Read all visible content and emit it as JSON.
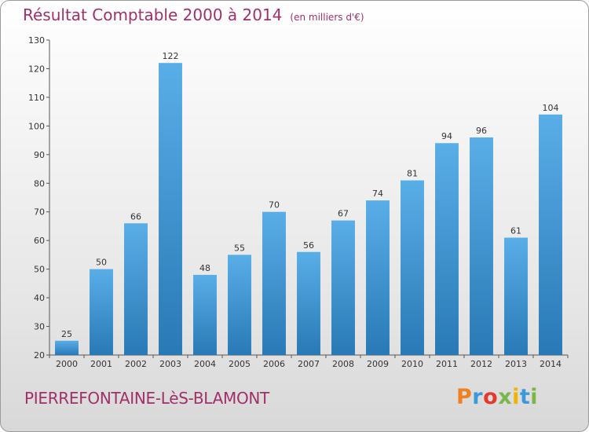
{
  "header": {
    "title": "Résultat Comptable 2000 à 2014",
    "subtitle": "(en milliers d'€)"
  },
  "footer": {
    "commune": "PIERREFONTAINE-LèS-BLAMONT"
  },
  "logo": {
    "text": "Proxiti",
    "colors": [
      "#f08020",
      "#3a9ad9",
      "#e43a2b",
      "#7ab648",
      "#f0b400",
      "#3a9ad9",
      "#7ab648"
    ]
  },
  "colors": {
    "title": "#a0306a",
    "bar_light": "#5aaee8",
    "bar_dark": "#2879b5"
  },
  "chart_data": {
    "type": "bar",
    "title": "Résultat Comptable 2000 à 2014",
    "subtitle": "(en milliers d'€)",
    "categories": [
      "2000",
      "2001",
      "2002",
      "2003",
      "2004",
      "2005",
      "2006",
      "2007",
      "2008",
      "2009",
      "2010",
      "2011",
      "2012",
      "2013",
      "2014"
    ],
    "values": [
      25,
      50,
      66,
      122,
      48,
      55,
      70,
      56,
      67,
      74,
      81,
      94,
      96,
      61,
      104
    ],
    "ylim": [
      20,
      130
    ],
    "yticks": [
      20,
      30,
      40,
      50,
      60,
      70,
      80,
      90,
      100,
      110,
      120,
      130
    ],
    "grid": false,
    "legend": "none"
  }
}
